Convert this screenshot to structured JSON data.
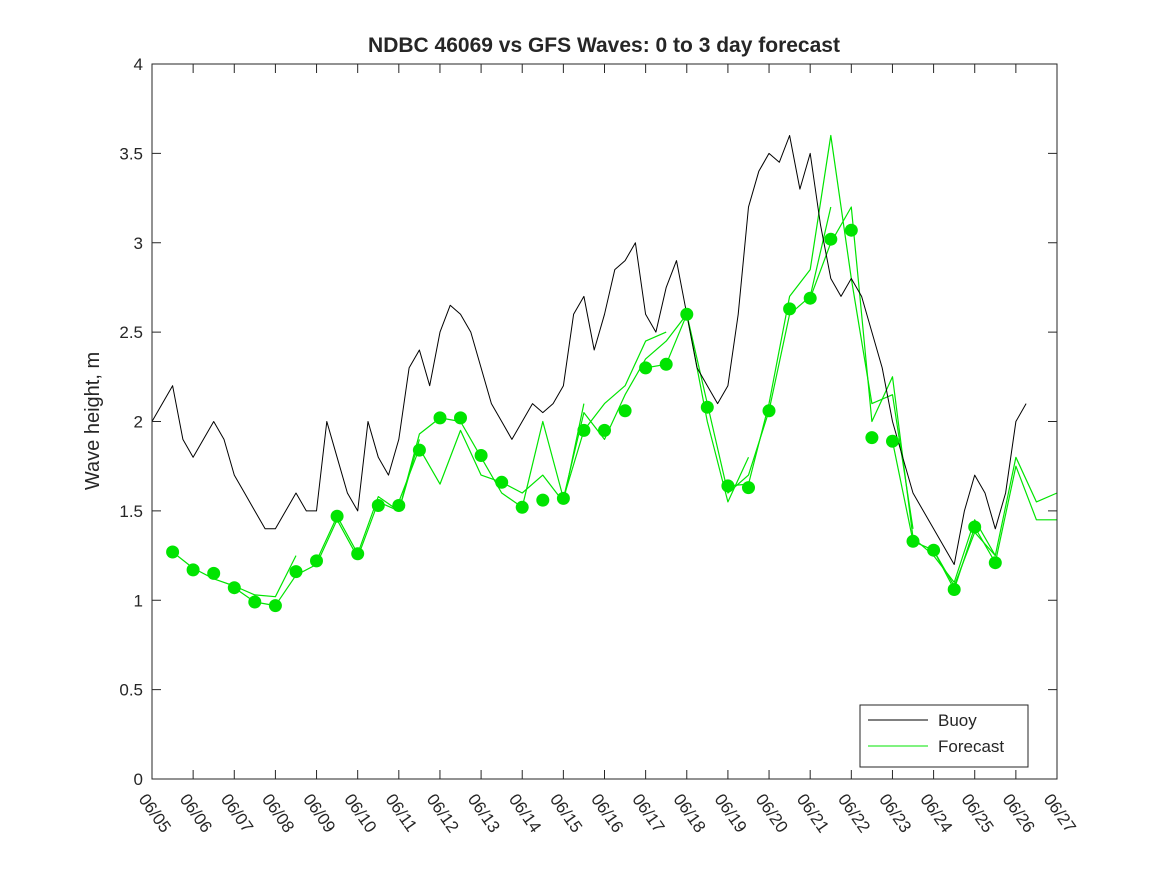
{
  "chart_data": {
    "type": "line",
    "title": "NDBC 46069 vs GFS Waves: 0 to 3 day forecast",
    "xlabel": "",
    "ylabel": "Wave height, m",
    "ylim": [
      0,
      4
    ],
    "yticks": [
      "0",
      "0.5",
      "1",
      "1.5",
      "2",
      "2.5",
      "3",
      "3.5",
      "4"
    ],
    "xlim_days": [
      0,
      22
    ],
    "xticks": [
      "06/05",
      "06/06",
      "06/07",
      "06/08",
      "06/09",
      "06/10",
      "06/11",
      "06/12",
      "06/13",
      "06/14",
      "06/15",
      "06/16",
      "06/17",
      "06/18",
      "06/19",
      "06/20",
      "06/21",
      "06/22",
      "06/23",
      "06/24",
      "06/25",
      "06/26",
      "06/27"
    ],
    "legend": {
      "position": "bottom-right",
      "entries": [
        "Buoy",
        "Forecast"
      ]
    },
    "colors": {
      "buoy": "#000000",
      "forecast": "#00e400",
      "axes": "#262626"
    },
    "buoy": {
      "name": "Buoy",
      "x": [
        0,
        0.25,
        0.5,
        0.75,
        1.0,
        1.25,
        1.5,
        1.75,
        2.0,
        2.25,
        2.5,
        2.75,
        3.0,
        3.25,
        3.5,
        3.75,
        4.0,
        4.25,
        4.5,
        4.75,
        5.0,
        5.25,
        5.5,
        5.75,
        6.0,
        6.25,
        6.5,
        6.75,
        7.0,
        7.25,
        7.5,
        7.75,
        8.0,
        8.25,
        8.5,
        8.75,
        9.0,
        9.25,
        9.5,
        9.75,
        10.0,
        10.25,
        10.5,
        10.75,
        11.0,
        11.25,
        11.5,
        11.75,
        12.0,
        12.25,
        12.5,
        12.75,
        13.0,
        13.25,
        13.5,
        13.75,
        14.0,
        14.25,
        14.5,
        14.75,
        15.0,
        15.25,
        15.5,
        15.75,
        16.0,
        16.25,
        16.5,
        16.75,
        17.0,
        17.25,
        17.5,
        17.75,
        18.0,
        18.25,
        18.5,
        18.75,
        19.0,
        19.25,
        19.5,
        19.75,
        20.0,
        20.25,
        20.5,
        20.75,
        21.0,
        21.25
      ],
      "values": [
        2.0,
        2.1,
        2.2,
        1.9,
        1.8,
        1.9,
        2.0,
        1.9,
        1.7,
        1.6,
        1.5,
        1.4,
        1.4,
        1.5,
        1.6,
        1.5,
        1.5,
        2.0,
        1.8,
        1.6,
        1.5,
        2.0,
        1.8,
        1.7,
        1.9,
        2.3,
        2.4,
        2.2,
        2.5,
        2.65,
        2.6,
        2.5,
        2.3,
        2.1,
        2.0,
        1.9,
        2.0,
        2.1,
        2.05,
        2.1,
        2.2,
        2.6,
        2.7,
        2.4,
        2.6,
        2.85,
        2.9,
        3.0,
        2.6,
        2.5,
        2.75,
        2.9,
        2.6,
        2.3,
        2.2,
        2.1,
        2.2,
        2.6,
        3.2,
        3.4,
        3.5,
        3.45,
        3.6,
        3.3,
        3.5,
        3.1,
        2.8,
        2.7,
        2.8,
        2.7,
        2.5,
        2.3,
        2.0,
        1.8,
        1.6,
        1.5,
        1.4,
        1.3,
        1.2,
        1.5,
        1.7,
        1.6,
        1.4,
        1.6,
        2.0,
        2.1
      ]
    },
    "forecast_markers": {
      "name": "Forecast",
      "x": [
        0.5,
        1.0,
        1.5,
        2.0,
        2.5,
        3.0,
        3.5,
        4.0,
        4.5,
        5.0,
        5.5,
        6.0,
        6.5,
        7.0,
        7.5,
        8.0,
        8.5,
        9.0,
        9.5,
        10.0,
        10.5,
        11.0,
        11.5,
        12.0,
        12.5,
        13.0,
        13.5,
        14.0,
        14.5,
        15.0,
        15.5,
        16.0,
        16.5,
        17.0,
        17.5,
        18.0,
        18.5,
        19.0,
        19.5,
        20.0,
        20.5
      ],
      "values": [
        1.27,
        1.17,
        1.15,
        1.07,
        0.99,
        0.97,
        1.16,
        1.22,
        1.47,
        1.26,
        1.53,
        1.53,
        1.84,
        2.02,
        2.02,
        1.81,
        1.66,
        1.52,
        1.56,
        1.57,
        1.95,
        1.95,
        2.06,
        2.3,
        2.32,
        2.6,
        2.08,
        1.64,
        1.63,
        2.06,
        2.63,
        2.69,
        3.02,
        3.07,
        1.91,
        1.89,
        1.33,
        1.28,
        1.06,
        1.41,
        1.21
      ]
    },
    "forecast_runs": [
      {
        "x": [
          0.5,
          1.0,
          1.5,
          2.0,
          2.5,
          3.0,
          3.5
        ],
        "values": [
          1.27,
          1.18,
          1.12,
          1.08,
          1.03,
          1.02,
          1.25
        ]
      },
      {
        "x": [
          2.0,
          2.5,
          3.0,
          3.5,
          4.0,
          4.5,
          5.0,
          5.5,
          6.0,
          6.5
        ],
        "values": [
          1.07,
          0.99,
          0.97,
          1.14,
          1.2,
          1.45,
          1.24,
          1.55,
          1.5,
          1.9
        ]
      },
      {
        "x": [
          4.0,
          4.5,
          5.0,
          5.5,
          6.0,
          6.5,
          7.0,
          7.5,
          8.0
        ],
        "values": [
          1.22,
          1.47,
          1.26,
          1.58,
          1.5,
          1.93,
          2.02,
          2.0,
          1.8
        ]
      },
      {
        "x": [
          6.0,
          6.5,
          7.0,
          7.5,
          8.0,
          8.5,
          9.0,
          9.5,
          10.0,
          10.5
        ],
        "values": [
          1.55,
          1.85,
          1.65,
          1.95,
          1.7,
          1.66,
          1.6,
          1.7,
          1.55,
          2.1
        ]
      },
      {
        "x": [
          8.0,
          8.5,
          9.0,
          9.5,
          10.0,
          10.5,
          11.0,
          11.5,
          12.0,
          12.5
        ],
        "values": [
          1.8,
          1.6,
          1.52,
          2.0,
          1.57,
          1.95,
          2.1,
          2.2,
          2.45,
          2.5
        ]
      },
      {
        "x": [
          10.0,
          10.5,
          11.0,
          11.5,
          12.0,
          12.5,
          13.0,
          13.5,
          14.0,
          14.5
        ],
        "values": [
          1.57,
          2.05,
          1.9,
          2.15,
          2.35,
          2.45,
          2.6,
          2.0,
          1.55,
          1.8
        ]
      },
      {
        "x": [
          12.0,
          12.5,
          13.0,
          13.5,
          14.0,
          14.5,
          15.0,
          15.5,
          16.0,
          16.5
        ],
        "values": [
          2.3,
          2.32,
          2.6,
          2.1,
          1.6,
          1.7,
          2.06,
          2.6,
          2.7,
          3.2
        ]
      },
      {
        "x": [
          14.0,
          14.5,
          15.0,
          15.5,
          16.0,
          16.5,
          17.0,
          17.5,
          18.0,
          18.5
        ],
        "values": [
          1.64,
          1.65,
          2.1,
          2.7,
          2.85,
          3.6,
          2.8,
          2.1,
          2.15,
          1.4
        ]
      },
      {
        "x": [
          16.0,
          16.5,
          17.0,
          17.5,
          18.0,
          18.5,
          19.0,
          19.5,
          20.0,
          20.5
        ],
        "values": [
          2.69,
          3.0,
          3.2,
          2.0,
          2.25,
          1.35,
          1.25,
          1.1,
          1.45,
          1.25
        ]
      },
      {
        "x": [
          18.0,
          18.5,
          19.0,
          19.5,
          20.0,
          20.5,
          21.0,
          21.5,
          22.0
        ],
        "values": [
          1.89,
          1.33,
          1.28,
          1.08,
          1.38,
          1.25,
          1.8,
          1.55,
          1.6
        ]
      },
      {
        "x": [
          19.0,
          19.5,
          20.0,
          20.5,
          21.0,
          21.5,
          22.0
        ],
        "values": [
          1.28,
          1.06,
          1.41,
          1.21,
          1.75,
          1.45,
          1.45
        ]
      }
    ]
  }
}
